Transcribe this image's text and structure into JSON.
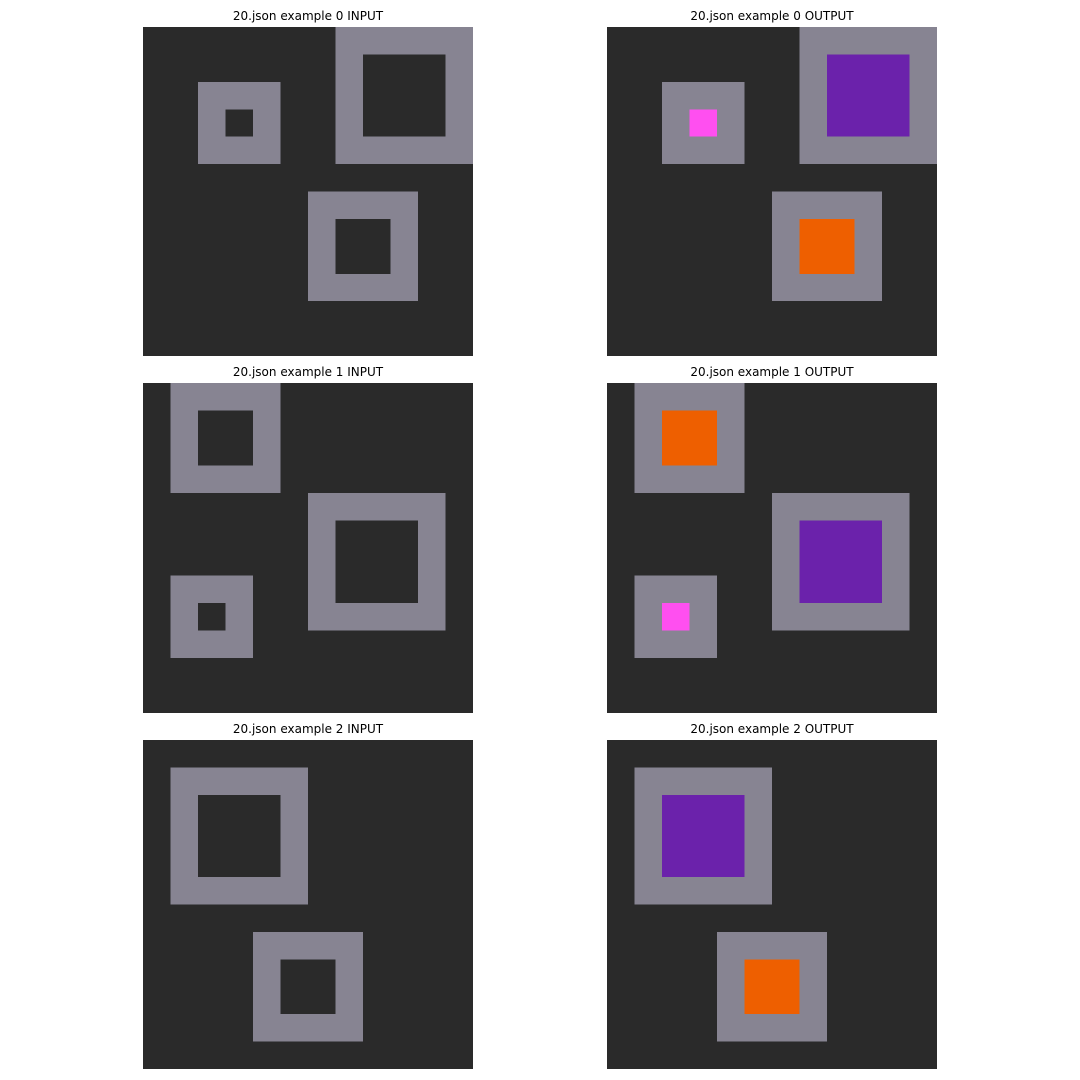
{
  "colors": {
    "0": "#2a2a2a",
    "5": "#878492",
    "2": "#6b22ab",
    "6": "#ff4ff0",
    "7": "#ee5f00"
  },
  "panels": [
    {
      "title": "20.json example 0 INPUT",
      "grid_size": 12,
      "rects": [
        {
          "r": 0,
          "c": 7,
          "h": 5,
          "w": 5,
          "v": 5
        },
        {
          "r": 1,
          "c": 8,
          "h": 3,
          "w": 3,
          "v": 0
        },
        {
          "r": 2,
          "c": 2,
          "h": 3,
          "w": 3,
          "v": 5
        },
        {
          "r": 3,
          "c": 3,
          "h": 1,
          "w": 1,
          "v": 0
        },
        {
          "r": 6,
          "c": 6,
          "h": 4,
          "w": 4,
          "v": 5
        },
        {
          "r": 7,
          "c": 7,
          "h": 2,
          "w": 2,
          "v": 0
        }
      ]
    },
    {
      "title": "20.json example 0 OUTPUT",
      "grid_size": 12,
      "rects": [
        {
          "r": 0,
          "c": 7,
          "h": 5,
          "w": 5,
          "v": 5
        },
        {
          "r": 1,
          "c": 8,
          "h": 3,
          "w": 3,
          "v": 2
        },
        {
          "r": 2,
          "c": 2,
          "h": 3,
          "w": 3,
          "v": 5
        },
        {
          "r": 3,
          "c": 3,
          "h": 1,
          "w": 1,
          "v": 6
        },
        {
          "r": 6,
          "c": 6,
          "h": 4,
          "w": 4,
          "v": 5
        },
        {
          "r": 7,
          "c": 7,
          "h": 2,
          "w": 2,
          "v": 7
        }
      ]
    },
    {
      "title": "20.json example 1 INPUT",
      "grid_size": 12,
      "rects": [
        {
          "r": 0,
          "c": 1,
          "h": 4,
          "w": 4,
          "v": 5
        },
        {
          "r": 1,
          "c": 2,
          "h": 2,
          "w": 2,
          "v": 0
        },
        {
          "r": 4,
          "c": 6,
          "h": 5,
          "w": 5,
          "v": 5
        },
        {
          "r": 5,
          "c": 7,
          "h": 3,
          "w": 3,
          "v": 0
        },
        {
          "r": 7,
          "c": 1,
          "h": 3,
          "w": 3,
          "v": 5
        },
        {
          "r": 8,
          "c": 2,
          "h": 1,
          "w": 1,
          "v": 0
        }
      ]
    },
    {
      "title": "20.json example 1 OUTPUT",
      "grid_size": 12,
      "rects": [
        {
          "r": 0,
          "c": 1,
          "h": 4,
          "w": 4,
          "v": 5
        },
        {
          "r": 1,
          "c": 2,
          "h": 2,
          "w": 2,
          "v": 7
        },
        {
          "r": 4,
          "c": 6,
          "h": 5,
          "w": 5,
          "v": 5
        },
        {
          "r": 5,
          "c": 7,
          "h": 3,
          "w": 3,
          "v": 2
        },
        {
          "r": 7,
          "c": 1,
          "h": 3,
          "w": 3,
          "v": 5
        },
        {
          "r": 8,
          "c": 2,
          "h": 1,
          "w": 1,
          "v": 6
        }
      ]
    },
    {
      "title": "20.json example 2 INPUT",
      "grid_size": 12,
      "rects": [
        {
          "r": 1,
          "c": 1,
          "h": 5,
          "w": 5,
          "v": 5
        },
        {
          "r": 2,
          "c": 2,
          "h": 3,
          "w": 3,
          "v": 0
        },
        {
          "r": 7,
          "c": 4,
          "h": 4,
          "w": 4,
          "v": 5
        },
        {
          "r": 8,
          "c": 5,
          "h": 2,
          "w": 2,
          "v": 0
        }
      ]
    },
    {
      "title": "20.json example 2 OUTPUT",
      "grid_size": 12,
      "rects": [
        {
          "r": 1,
          "c": 1,
          "h": 5,
          "w": 5,
          "v": 5
        },
        {
          "r": 2,
          "c": 2,
          "h": 3,
          "w": 3,
          "v": 2
        },
        {
          "r": 7,
          "c": 4,
          "h": 4,
          "w": 4,
          "v": 5
        },
        {
          "r": 8,
          "c": 5,
          "h": 2,
          "w": 2,
          "v": 7
        }
      ]
    }
  ]
}
